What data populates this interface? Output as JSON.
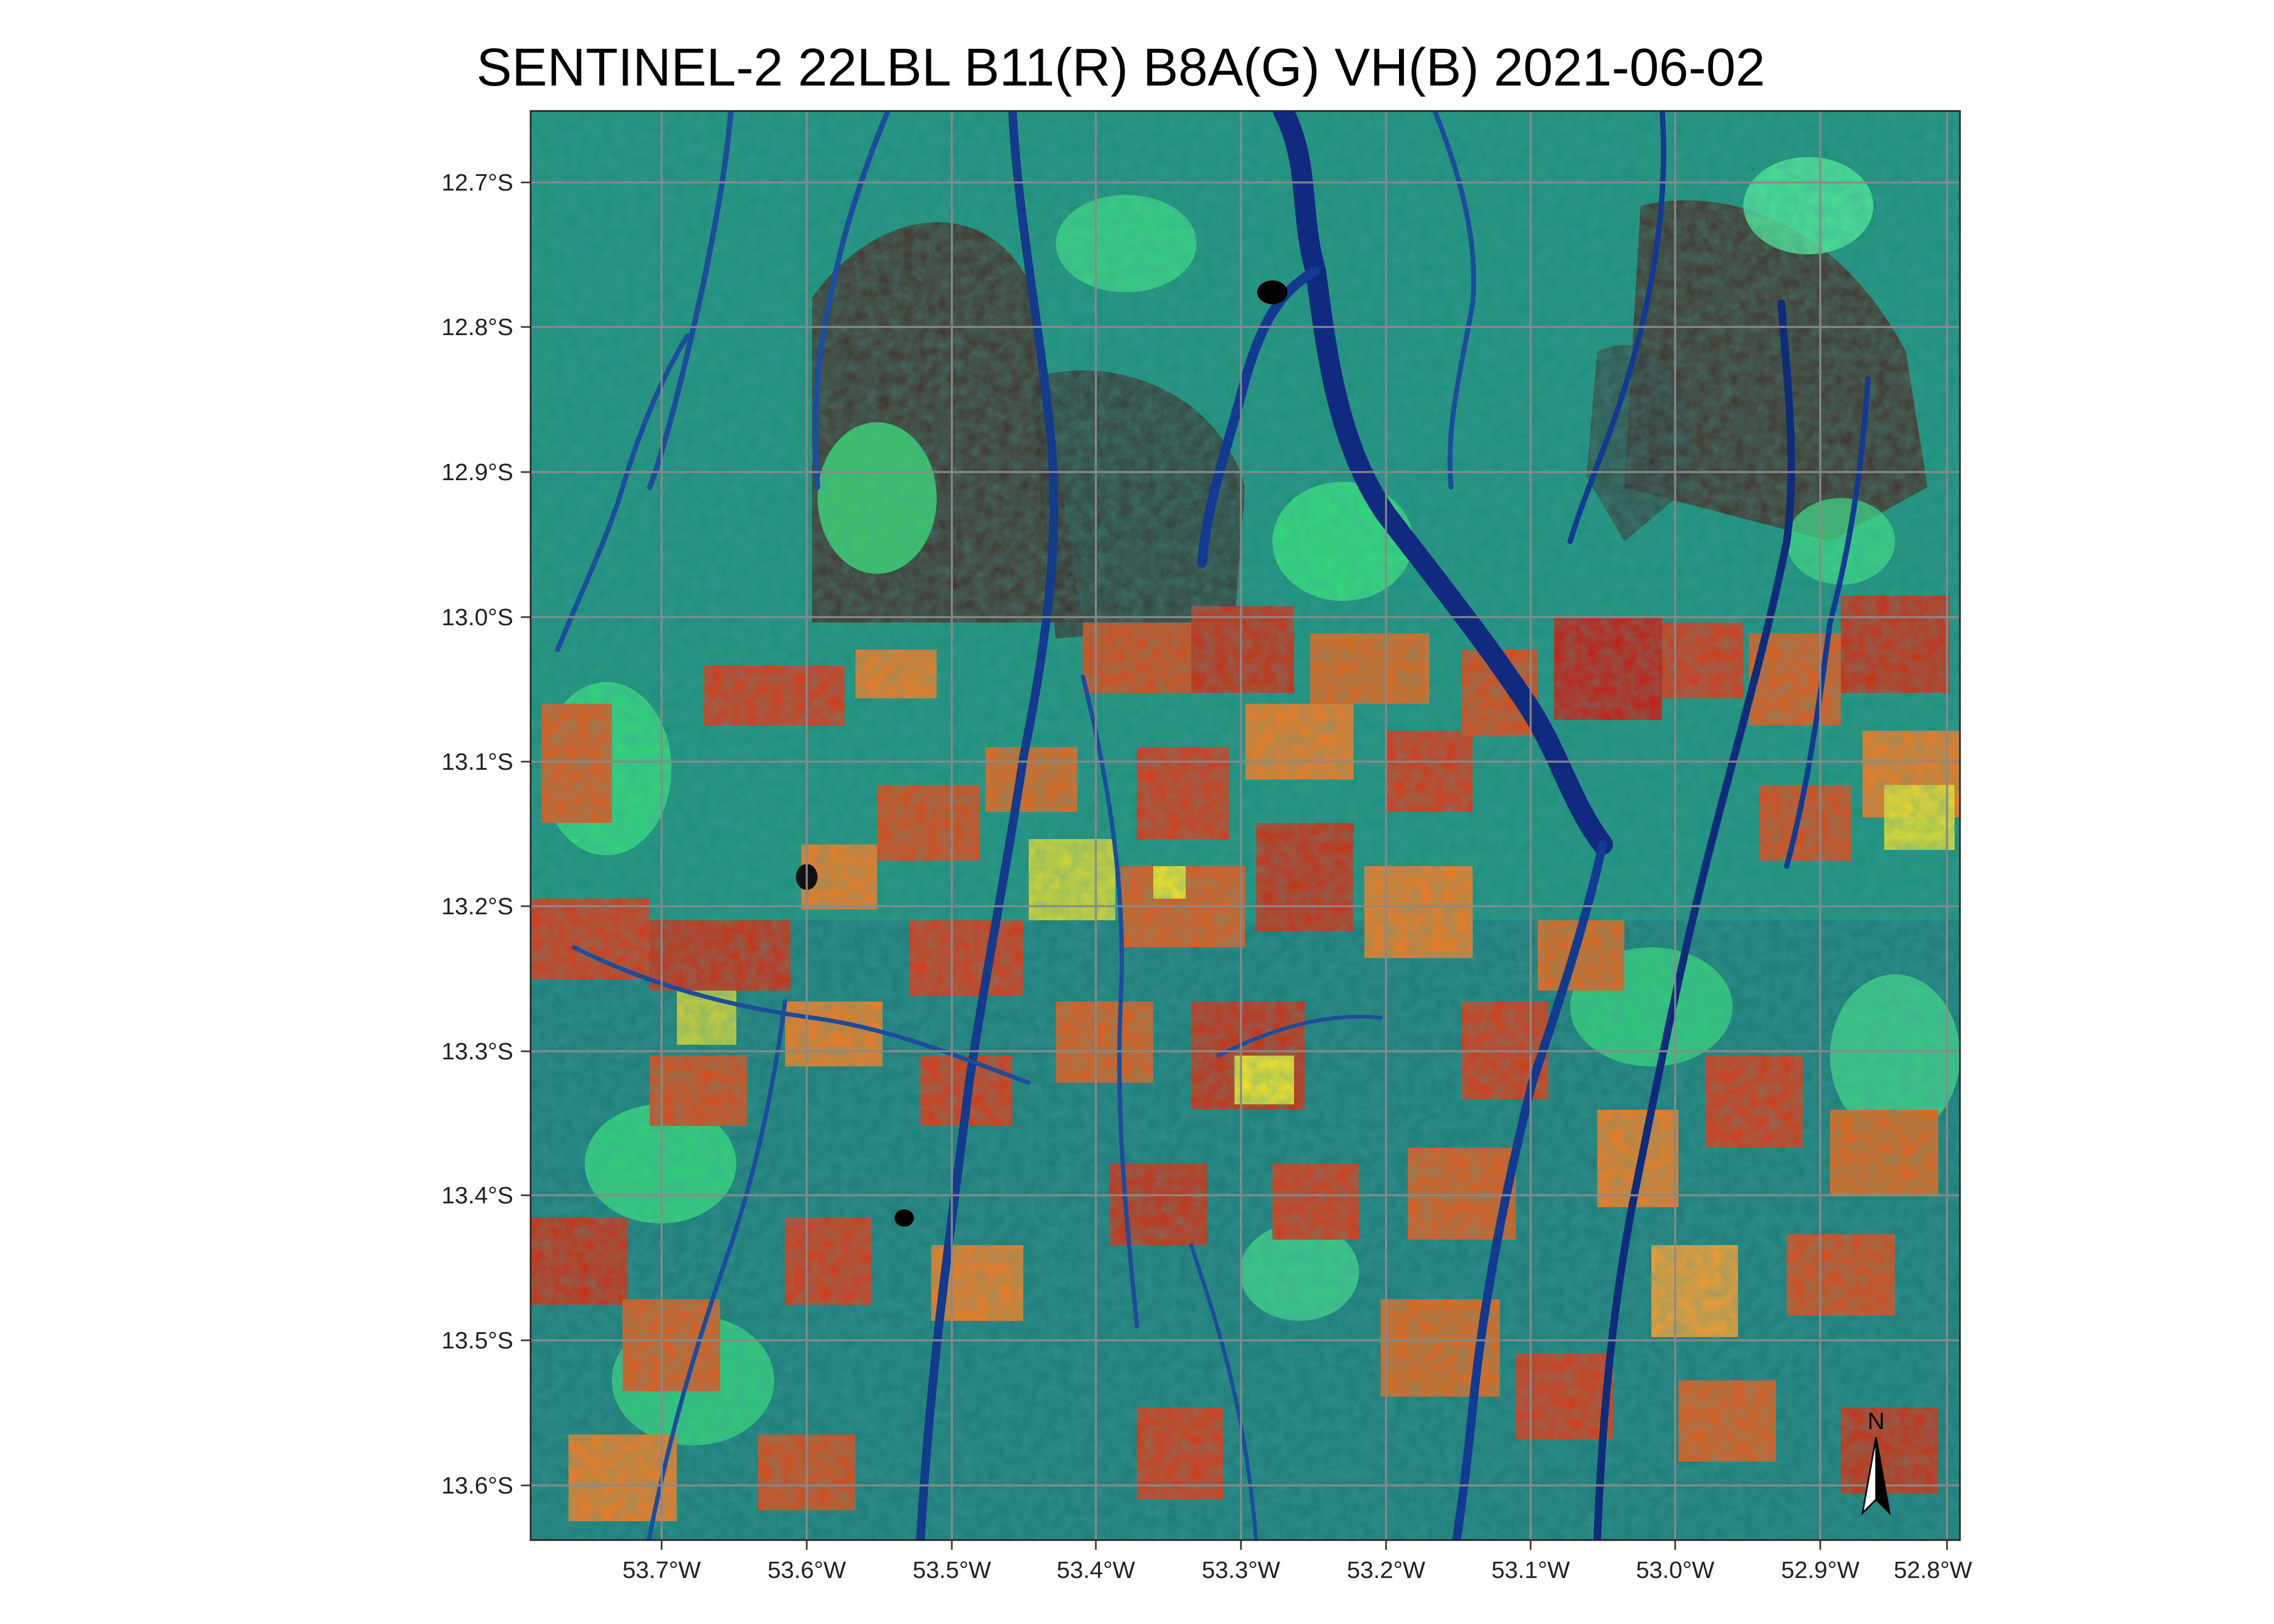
{
  "map": {
    "title": "SENTINEL-2 22LBL B11(R) B8A(G) VH(B) 2021-06-02",
    "lat_labels": [
      "12.7°S",
      "12.8°S",
      "12.9°S",
      "13.0°S",
      "13.1°S",
      "13.2°S",
      "13.3°S",
      "13.4°S",
      "13.5°S",
      "13.6°S"
    ],
    "lon_labels": [
      "53.7°W",
      "53.6°W",
      "53.5°W",
      "53.4°W",
      "53.3°W",
      "53.2°W",
      "53.1°W",
      "53.0°W",
      "52.9°W",
      "52.8°W"
    ],
    "north_arrow_label": "N",
    "colors": {
      "forest": "#1f8f7d",
      "water": "#102a80",
      "crop_red": "#d63818",
      "crop_orange": "#f07a22",
      "bright_green": "#3cf07a",
      "yellow": "#f2e02a",
      "dark_burn": "#4a2a22",
      "gridline": "#8a8a8a"
    }
  }
}
